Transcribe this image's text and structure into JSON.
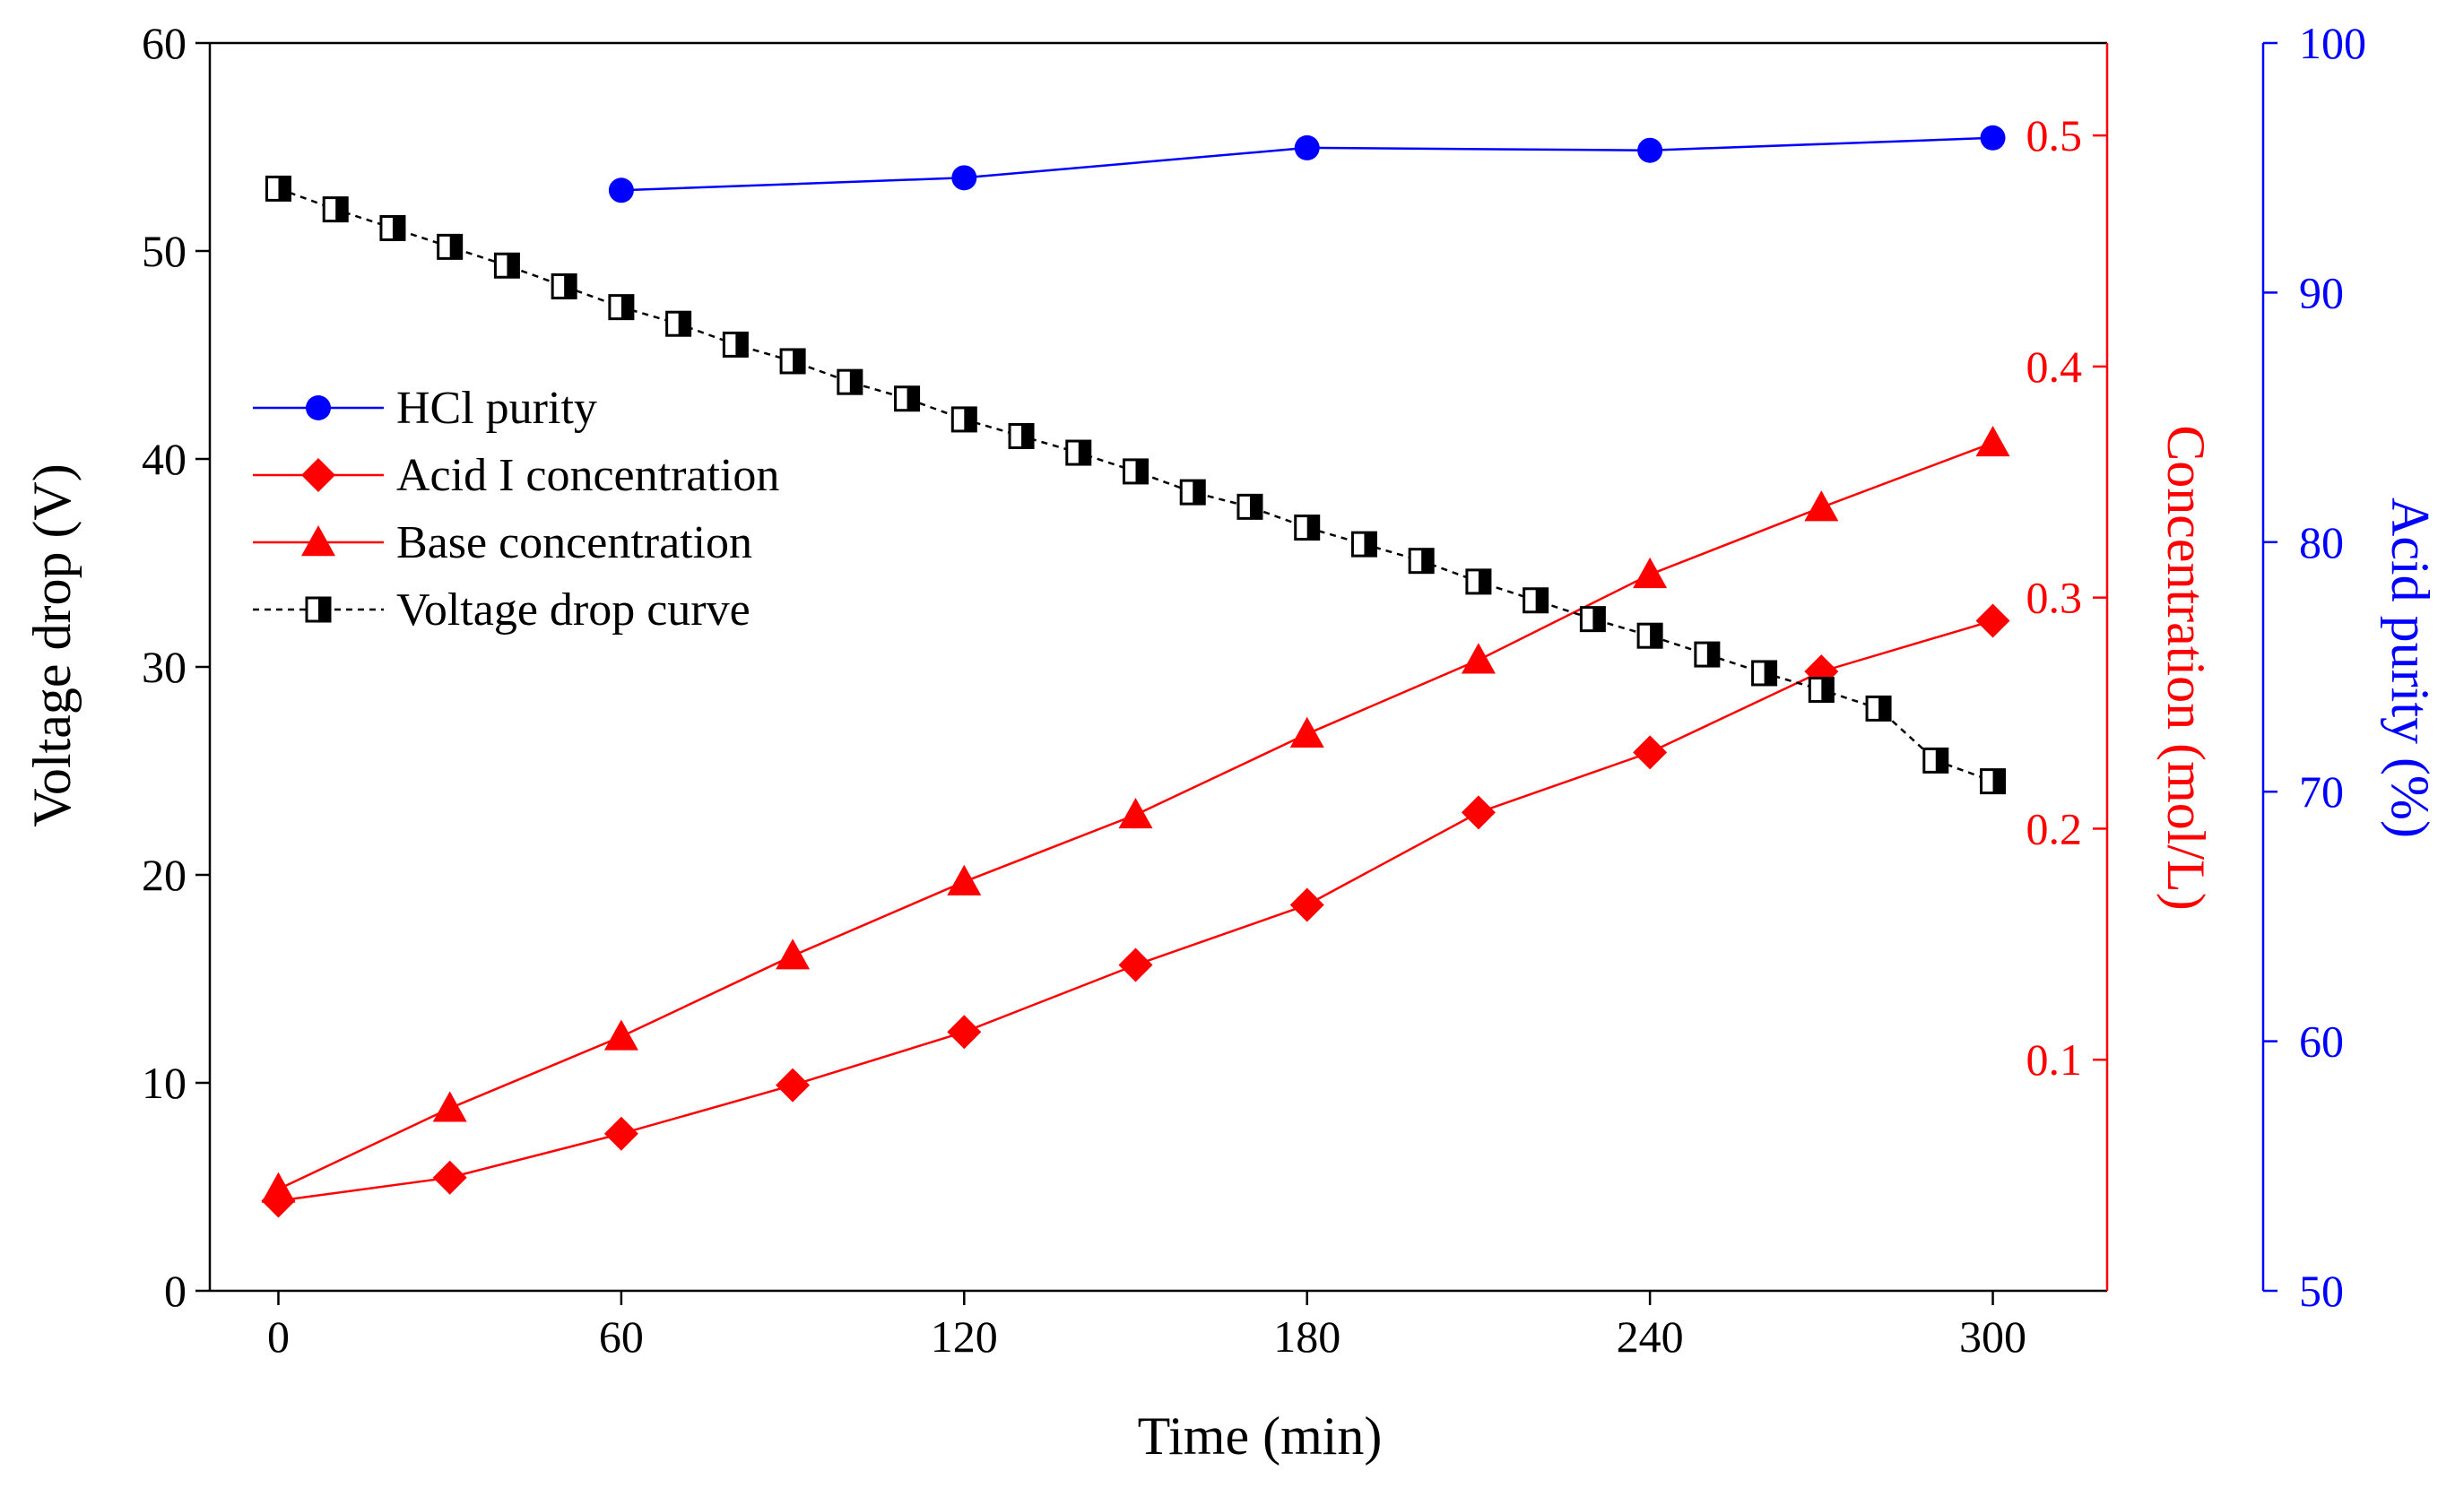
{
  "chart_data": {
    "type": "line",
    "x_axis": {
      "label": "Time (min)",
      "range": [
        -12,
        320
      ],
      "ticks": [
        0,
        60,
        120,
        180,
        240,
        300
      ]
    },
    "y_axes": {
      "left": {
        "label": "Voltage drop (V)",
        "range": [
          0,
          60
        ],
        "ticks": [
          0,
          10,
          20,
          30,
          40,
          50,
          60
        ],
        "color": "#000000"
      },
      "right_inner": {
        "label": "Concentration (mol/L)",
        "range": [
          0,
          0.54
        ],
        "ticks": [
          0.1,
          0.2,
          0.3,
          0.4,
          0.5
        ],
        "color": "#ff0000"
      },
      "right_outer": {
        "label": "Acid purity (%)",
        "range": [
          50,
          100
        ],
        "ticks": [
          50,
          60,
          70,
          80,
          90,
          100
        ],
        "color": "#0000ff"
      }
    },
    "series": [
      {
        "name": "HCl purity",
        "axis": "right_outer",
        "marker": "circle",
        "color": "#0000ff",
        "x": [
          60,
          120,
          180,
          240,
          300
        ],
        "y": [
          94.1,
          94.6,
          95.8,
          95.7,
          96.2
        ]
      },
      {
        "name": "Acid I concentration",
        "axis": "right_inner",
        "marker": "diamond",
        "color": "#ff0000",
        "x": [
          0,
          30,
          60,
          90,
          120,
          150,
          180,
          210,
          240,
          270,
          300
        ],
        "y": [
          0.039,
          0.049,
          0.068,
          0.089,
          0.112,
          0.141,
          0.167,
          0.207,
          0.233,
          0.268,
          0.29
        ]
      },
      {
        "name": "Base concentration",
        "axis": "right_inner",
        "marker": "triangle",
        "color": "#ff0000",
        "x": [
          0,
          30,
          60,
          90,
          120,
          150,
          180,
          210,
          240,
          270,
          300
        ],
        "y": [
          0.044,
          0.079,
          0.11,
          0.145,
          0.177,
          0.206,
          0.241,
          0.273,
          0.31,
          0.339,
          0.367
        ]
      },
      {
        "name": "Voltage drop curve",
        "axis": "left",
        "marker": "half-filled-square",
        "color": "#000000",
        "x": [
          0,
          10,
          20,
          30,
          40,
          50,
          60,
          70,
          80,
          90,
          100,
          110,
          120,
          130,
          140,
          150,
          160,
          170,
          180,
          190,
          200,
          210,
          220,
          230,
          240,
          250,
          260,
          270,
          280,
          290,
          300
        ],
        "y": [
          53,
          52,
          51.1,
          50.2,
          49.3,
          48.3,
          47.3,
          46.5,
          45.5,
          44.7,
          43.7,
          42.9,
          41.9,
          41.1,
          40.3,
          39.4,
          38.4,
          37.7,
          36.7,
          35.9,
          35.1,
          34.1,
          33.2,
          32.3,
          31.5,
          30.6,
          29.7,
          28.9,
          28,
          25.5,
          24.5
        ]
      }
    ],
    "legend": {
      "position": "upper-left",
      "entries": [
        "HCl purity",
        "Acid I concentration",
        "Base concentration",
        "Voltage drop curve"
      ]
    }
  }
}
